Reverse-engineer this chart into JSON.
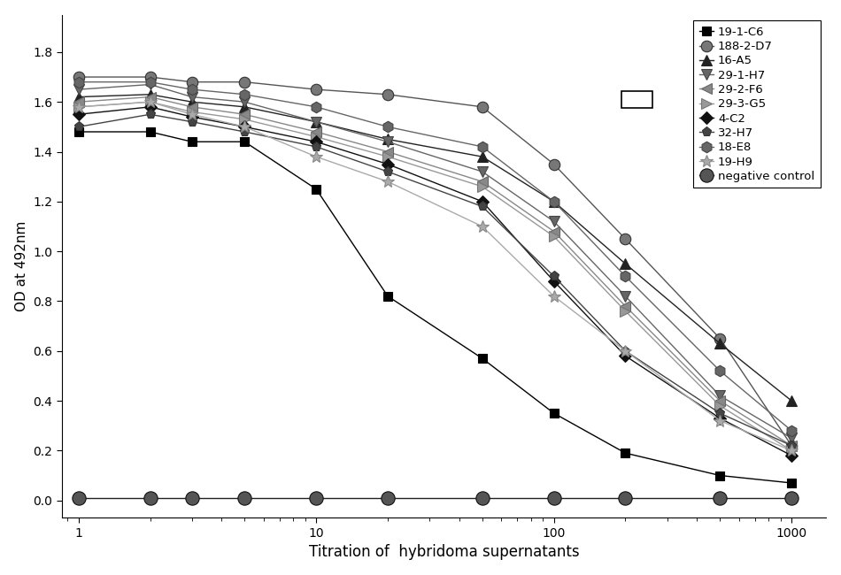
{
  "x_values": [
    1,
    2,
    3,
    5,
    10,
    20,
    50,
    100,
    200,
    500,
    1000
  ],
  "series": [
    {
      "name": "19-1-C6",
      "y": [
        1.48,
        1.48,
        1.44,
        1.44,
        1.25,
        0.82,
        0.57,
        0.35,
        0.19,
        0.1,
        0.07
      ],
      "color": "#000000",
      "marker": "s",
      "markersize": 7,
      "mfc": "#000000",
      "mec": "#000000"
    },
    {
      "name": "188-2-D7",
      "y": [
        1.7,
        1.7,
        1.68,
        1.68,
        1.65,
        1.63,
        1.58,
        1.35,
        1.05,
        0.65,
        0.22
      ],
      "color": "#555555",
      "marker": "o",
      "markersize": 9,
      "mfc": "#777777",
      "mec": "#333333"
    },
    {
      "name": "16-A5",
      "y": [
        1.62,
        1.63,
        1.6,
        1.58,
        1.52,
        1.45,
        1.38,
        1.2,
        0.95,
        0.63,
        0.4
      ],
      "color": "#222222",
      "marker": "^",
      "markersize": 8,
      "mfc": "#222222",
      "mec": "#222222"
    },
    {
      "name": "29-1-H7",
      "y": [
        1.65,
        1.67,
        1.62,
        1.6,
        1.52,
        1.44,
        1.32,
        1.12,
        0.82,
        0.42,
        0.25
      ],
      "color": "#666666",
      "marker": "v",
      "markersize": 8,
      "mfc": "#666666",
      "mec": "#444444"
    },
    {
      "name": "29-2-F6",
      "y": [
        1.6,
        1.62,
        1.58,
        1.55,
        1.48,
        1.4,
        1.28,
        1.08,
        0.78,
        0.4,
        0.22
      ],
      "color": "#888888",
      "marker": "<",
      "markersize": 8,
      "mfc": "#888888",
      "mec": "#666666"
    },
    {
      "name": "29-3-G5",
      "y": [
        1.58,
        1.6,
        1.56,
        1.53,
        1.46,
        1.38,
        1.26,
        1.06,
        0.76,
        0.38,
        0.2
      ],
      "color": "#999999",
      "marker": ">",
      "markersize": 8,
      "mfc": "#999999",
      "mec": "#777777"
    },
    {
      "name": "4-C2",
      "y": [
        1.55,
        1.58,
        1.54,
        1.5,
        1.44,
        1.35,
        1.2,
        0.88,
        0.58,
        0.33,
        0.18
      ],
      "color": "#111111",
      "marker": "D",
      "markersize": 7,
      "mfc": "#111111",
      "mec": "#111111"
    },
    {
      "name": "32-H7",
      "y": [
        1.5,
        1.55,
        1.52,
        1.48,
        1.42,
        1.32,
        1.18,
        0.9,
        0.6,
        0.35,
        0.22
      ],
      "color": "#444444",
      "marker": "p",
      "markersize": 8,
      "mfc": "#444444",
      "mec": "#333333"
    },
    {
      "name": "18-E8",
      "y": [
        1.68,
        1.68,
        1.65,
        1.63,
        1.58,
        1.5,
        1.42,
        1.2,
        0.9,
        0.52,
        0.28
      ],
      "color": "#666666",
      "marker": "h",
      "markersize": 9,
      "mfc": "#666666",
      "mec": "#444444"
    },
    {
      "name": "19-H9",
      "y": [
        1.58,
        1.6,
        1.55,
        1.5,
        1.38,
        1.28,
        1.1,
        0.82,
        0.6,
        0.32,
        0.2
      ],
      "color": "#aaaaaa",
      "marker": "*",
      "markersize": 10,
      "mfc": "#aaaaaa",
      "mec": "#888888"
    },
    {
      "name": "negative control",
      "y": [
        0.01,
        0.01,
        0.01,
        0.01,
        0.01,
        0.01,
        0.01,
        0.01,
        0.01,
        0.01,
        0.01
      ],
      "color": "#222222",
      "marker": "o",
      "markersize": 11,
      "mfc": "#555555",
      "mec": "#111111"
    }
  ],
  "xlabel": "Titration of  hybridoma supernatants",
  "ylabel": "OD at 492nm",
  "xlim_left": 0.85,
  "xlim_right": 1400,
  "ylim_bottom": -0.07,
  "ylim_top": 1.95,
  "yticks": [
    0.0,
    0.2,
    0.4,
    0.6,
    0.8,
    1.0,
    1.2,
    1.4,
    1.6,
    1.8
  ],
  "background_color": "#ffffff"
}
